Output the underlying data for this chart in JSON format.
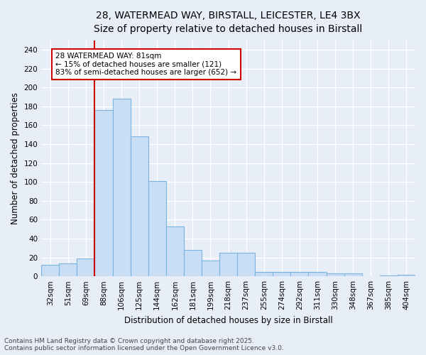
{
  "title_line1": "28, WATERMEAD WAY, BIRSTALL, LEICESTER, LE4 3BX",
  "title_line2": "Size of property relative to detached houses in Birstall",
  "xlabel": "Distribution of detached houses by size in Birstall",
  "ylabel": "Number of detached properties",
  "footnote": "Contains HM Land Registry data © Crown copyright and database right 2025.\nContains public sector information licensed under the Open Government Licence v3.0.",
  "annotation_line1": "28 WATERMEAD WAY: 81sqm",
  "annotation_line2": "← 15% of detached houses are smaller (121)",
  "annotation_line3": "83% of semi-detached houses are larger (652) →",
  "bin_labels": [
    "32sqm",
    "51sqm",
    "69sqm",
    "88sqm",
    "106sqm",
    "125sqm",
    "144sqm",
    "162sqm",
    "181sqm",
    "199sqm",
    "218sqm",
    "237sqm",
    "255sqm",
    "274sqm",
    "292sqm",
    "311sqm",
    "330sqm",
    "348sqm",
    "367sqm",
    "385sqm",
    "404sqm"
  ],
  "bar_values": [
    12,
    14,
    19,
    176,
    188,
    148,
    101,
    53,
    28,
    17,
    25,
    25,
    5,
    5,
    5,
    5,
    3,
    3,
    0,
    1,
    2
  ],
  "bar_color": "#c9ddf5",
  "bar_edge_color": "#7ab3de",
  "vline_x_index": 3,
  "vline_color": "#cc0000",
  "background_color": "#e8eef8",
  "annotation_box_color": "#ffffff",
  "annotation_box_edge": "#cc0000",
  "ylim": [
    0,
    250
  ],
  "yticks": [
    0,
    20,
    40,
    60,
    80,
    100,
    120,
    140,
    160,
    180,
    200,
    220,
    240
  ],
  "grid_color": "#ffffff",
  "title_fontsize": 10,
  "subtitle_fontsize": 9,
  "axis_label_fontsize": 8.5,
  "tick_fontsize": 7.5,
  "annotation_fontsize": 7.5,
  "footnote_fontsize": 6.5
}
